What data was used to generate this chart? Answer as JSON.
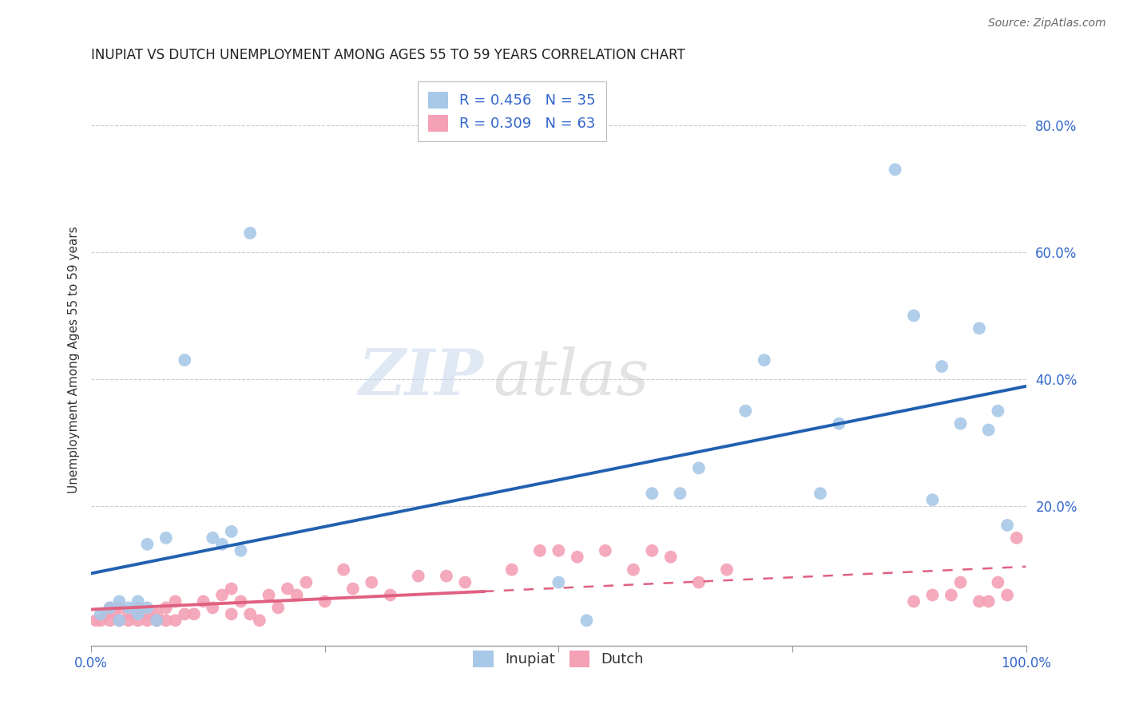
{
  "title": "INUPIAT VS DUTCH UNEMPLOYMENT AMONG AGES 55 TO 59 YEARS CORRELATION CHART",
  "source": "Source: ZipAtlas.com",
  "ylabel": "Unemployment Among Ages 55 to 59 years",
  "xlim": [
    0.0,
    1.0
  ],
  "ylim": [
    -0.02,
    0.88
  ],
  "xticks": [
    0.0,
    0.25,
    0.5,
    0.75,
    1.0
  ],
  "xtick_labels": [
    "0.0%",
    "",
    "",
    "",
    "100.0%"
  ],
  "yticks": [
    0.0,
    0.2,
    0.4,
    0.6,
    0.8
  ],
  "ytick_labels": [
    "",
    "20.0%",
    "40.0%",
    "60.0%",
    "80.0%"
  ],
  "background_color": "#ffffff",
  "grid_color": "#cccccc",
  "legend_entries": [
    {
      "label": "R = 0.456   N = 35",
      "color": "#a8c8e8"
    },
    {
      "label": "R = 0.309   N = 63",
      "color": "#f4a0b5"
    }
  ],
  "inupiat_scatter_x": [
    0.01,
    0.02,
    0.03,
    0.03,
    0.04,
    0.05,
    0.05,
    0.06,
    0.06,
    0.07,
    0.08,
    0.1,
    0.13,
    0.14,
    0.15,
    0.16,
    0.17,
    0.5,
    0.53,
    0.6,
    0.63,
    0.65,
    0.7,
    0.72,
    0.78,
    0.8,
    0.86,
    0.88,
    0.9,
    0.91,
    0.93,
    0.95,
    0.96,
    0.97,
    0.98
  ],
  "inupiat_scatter_y": [
    0.03,
    0.04,
    0.02,
    0.05,
    0.04,
    0.03,
    0.05,
    0.04,
    0.14,
    0.02,
    0.15,
    0.43,
    0.15,
    0.14,
    0.16,
    0.13,
    0.63,
    0.08,
    0.02,
    0.22,
    0.22,
    0.26,
    0.35,
    0.43,
    0.22,
    0.33,
    0.73,
    0.5,
    0.21,
    0.42,
    0.33,
    0.48,
    0.32,
    0.35,
    0.17
  ],
  "dutch_scatter_x": [
    0.005,
    0.01,
    0.015,
    0.02,
    0.02,
    0.025,
    0.03,
    0.03,
    0.04,
    0.04,
    0.05,
    0.05,
    0.05,
    0.06,
    0.06,
    0.07,
    0.07,
    0.08,
    0.08,
    0.09,
    0.09,
    0.1,
    0.11,
    0.12,
    0.13,
    0.14,
    0.15,
    0.15,
    0.16,
    0.17,
    0.18,
    0.19,
    0.2,
    0.21,
    0.22,
    0.23,
    0.25,
    0.27,
    0.28,
    0.3,
    0.32,
    0.35,
    0.38,
    0.4,
    0.45,
    0.48,
    0.5,
    0.52,
    0.55,
    0.58,
    0.6,
    0.62,
    0.65,
    0.68,
    0.88,
    0.9,
    0.92,
    0.93,
    0.95,
    0.96,
    0.97,
    0.98,
    0.99
  ],
  "dutch_scatter_y": [
    0.02,
    0.02,
    0.03,
    0.02,
    0.04,
    0.03,
    0.02,
    0.04,
    0.02,
    0.03,
    0.02,
    0.04,
    0.03,
    0.02,
    0.03,
    0.02,
    0.03,
    0.02,
    0.04,
    0.02,
    0.05,
    0.03,
    0.03,
    0.05,
    0.04,
    0.06,
    0.03,
    0.07,
    0.05,
    0.03,
    0.02,
    0.06,
    0.04,
    0.07,
    0.06,
    0.08,
    0.05,
    0.1,
    0.07,
    0.08,
    0.06,
    0.09,
    0.09,
    0.08,
    0.1,
    0.13,
    0.13,
    0.12,
    0.13,
    0.1,
    0.13,
    0.12,
    0.08,
    0.1,
    0.05,
    0.06,
    0.06,
    0.08,
    0.05,
    0.05,
    0.08,
    0.06,
    0.15
  ],
  "inupiat_color": "#a8c8e8",
  "dutch_color": "#f4a0b5",
  "inupiat_line_color": "#2060b0",
  "dutch_line_color": "#e06080",
  "title_fontsize": 12,
  "axis_label_fontsize": 11,
  "tick_fontsize": 12,
  "legend_fontsize": 13,
  "source_fontsize": 10
}
